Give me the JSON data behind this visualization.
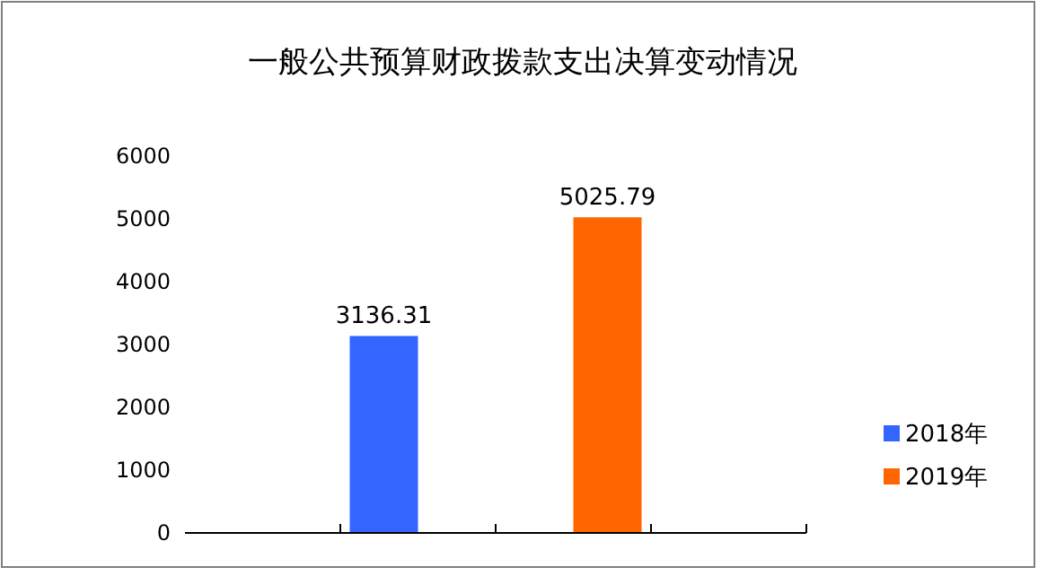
{
  "chart_data": {
    "type": "bar",
    "title": "一般公共预算财政拨款支出决算变动情况",
    "categories": [
      null,
      null,
      null,
      null
    ],
    "series": [
      {
        "name": "2018年",
        "color": "#3366ff",
        "values": [
          null,
          3136.31,
          null,
          null
        ]
      },
      {
        "name": "2019年",
        "color": "#ff6600",
        "values": [
          null,
          null,
          5025.79,
          null
        ]
      }
    ],
    "ylim": [
      0,
      6000
    ],
    "yticks": [
      0,
      1000,
      2000,
      3000,
      4000,
      5000,
      6000
    ],
    "data_labels": true,
    "legend": "bottom right",
    "grid": false
  }
}
